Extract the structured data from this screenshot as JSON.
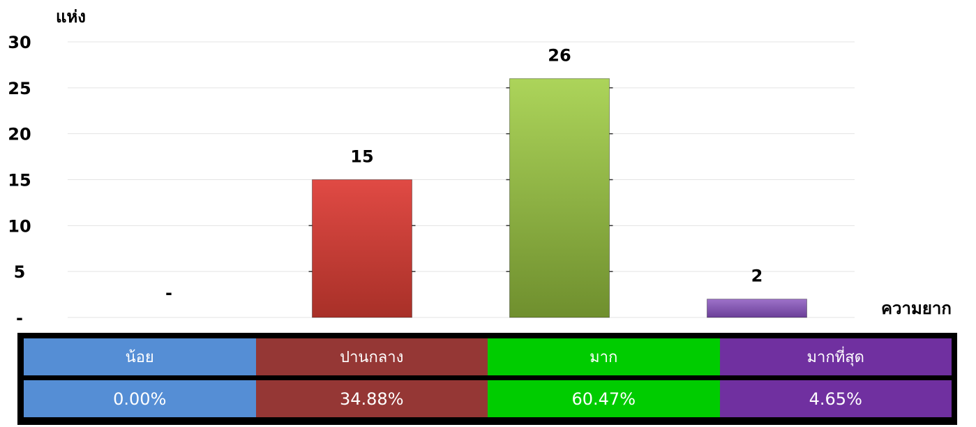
{
  "chart_data": {
    "type": "bar",
    "ylabel": "แห่ง",
    "xlabel": "ความยาก",
    "ylim": [
      0,
      30
    ],
    "yticks": [
      "-",
      "5",
      "10",
      "15",
      "20",
      "25",
      "30"
    ],
    "categories": [
      "น้อย",
      "ปานกลาง",
      "มาก",
      "มากที่สุด"
    ],
    "values": [
      0,
      15,
      26,
      2
    ],
    "data_labels": [
      "-",
      "15",
      "26",
      "2"
    ],
    "colors": [
      "#558ed5",
      "#c0392b",
      "#8db33a",
      "#8a5ab6"
    ],
    "grid": true
  },
  "table": {
    "header": [
      "น้อย",
      "ปานกลาง",
      "มาก",
      "มากที่สุด"
    ],
    "values": [
      "0.00%",
      "34.88%",
      "60.47%",
      "4.65%"
    ],
    "colors": [
      "#558ed5",
      "#953735",
      "#00cc00",
      "#7030a0"
    ]
  }
}
